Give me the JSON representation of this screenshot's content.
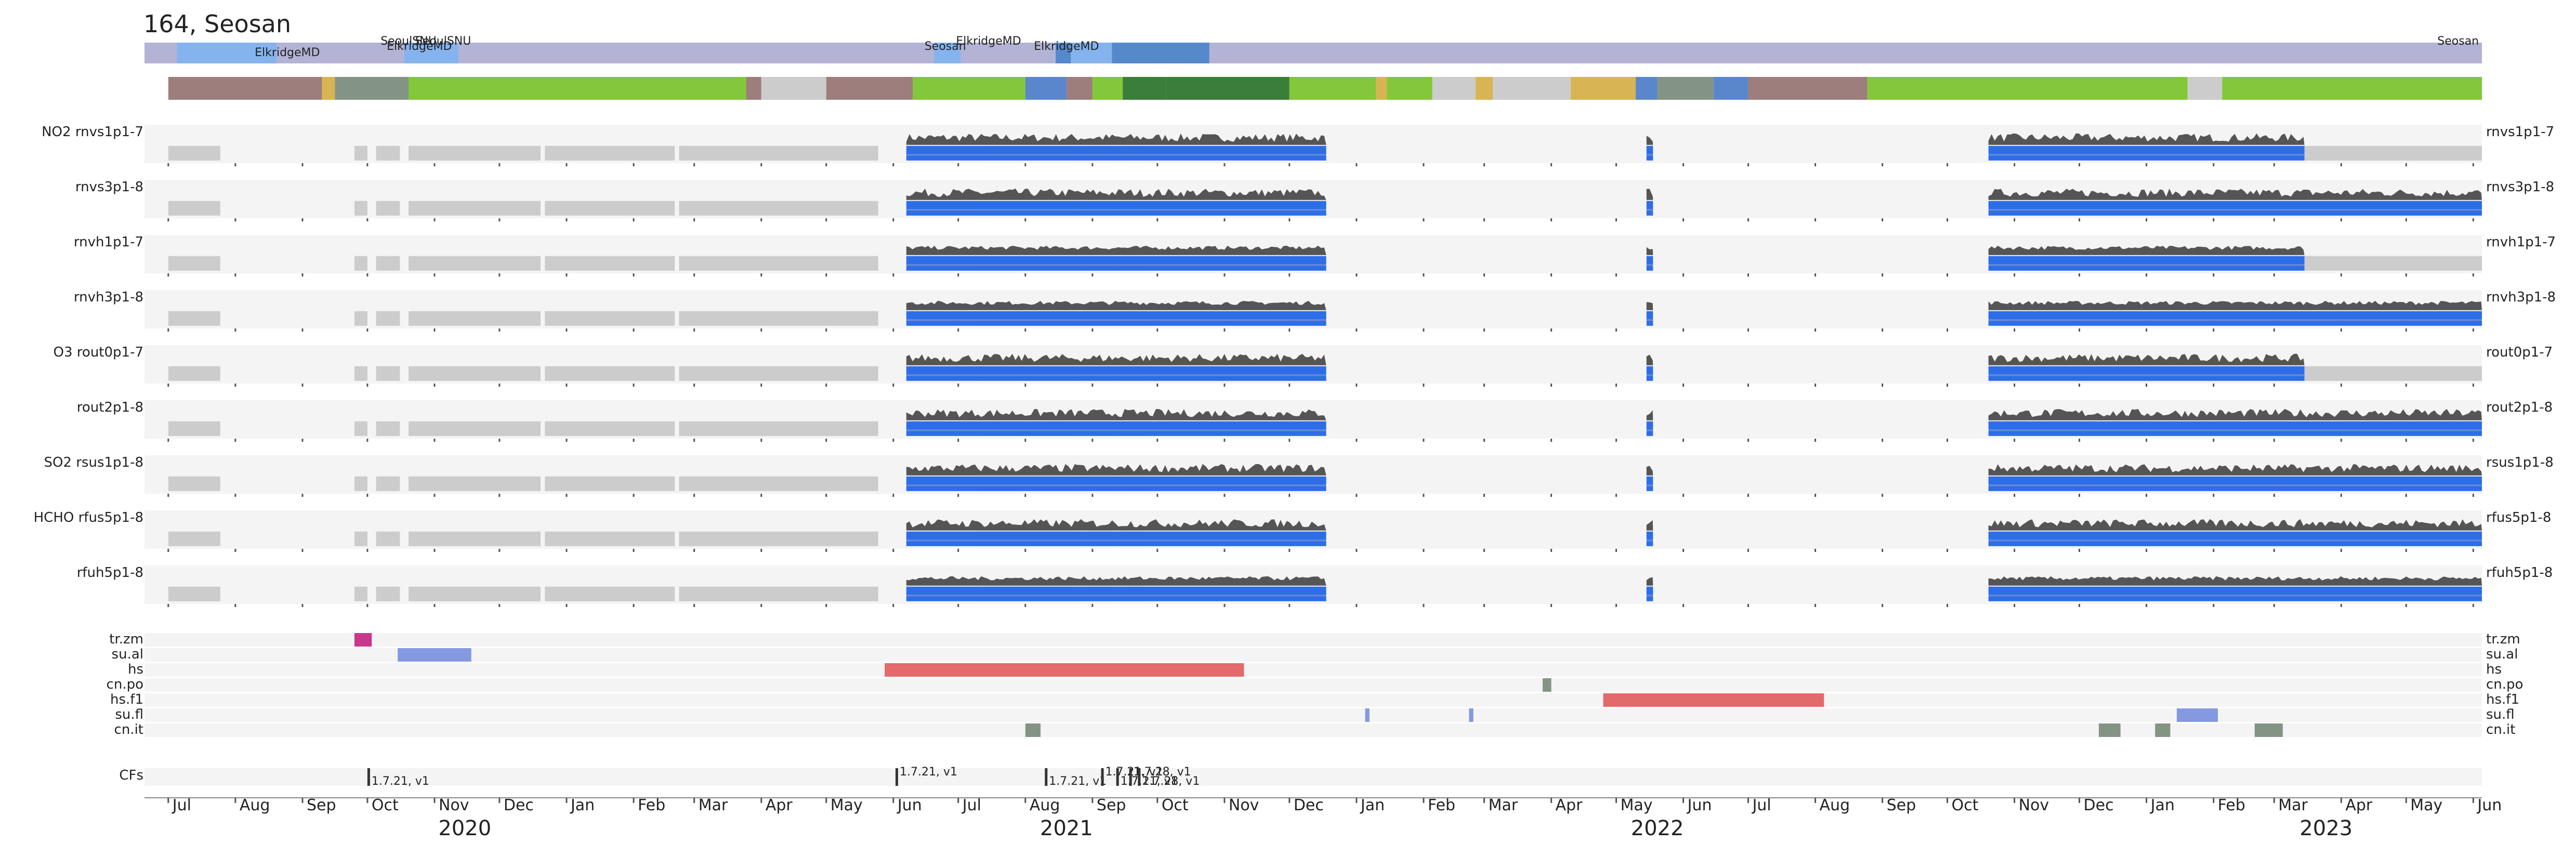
{
  "title": "164, Seosan",
  "chart_data": {
    "type": "timeline",
    "time_axis": {
      "start": "2020-06-20",
      "end": "2023-06-05",
      "months": [
        "Jul",
        "Aug",
        "Sep",
        "Oct",
        "Nov",
        "Dec",
        "Jan",
        "Feb",
        "Mar",
        "Apr",
        "May",
        "Jun",
        "Jul",
        "Aug",
        "Sep",
        "Oct",
        "Nov",
        "Dec",
        "Jan",
        "Feb",
        "Mar",
        "Apr",
        "May",
        "Jun",
        "Jul",
        "Aug",
        "Sep",
        "Oct",
        "Nov",
        "Dec",
        "Jan",
        "Feb",
        "Mar",
        "Apr",
        "May",
        "Jun"
      ],
      "years": [
        "2020",
        "2021",
        "2022",
        "2023"
      ]
    },
    "location_bar": {
      "labels": [
        {
          "text": "ElkridgeMD",
          "date": "2020-08-25",
          "row": 2
        },
        {
          "text": "SeoulSNU",
          "date": "2020-10-20",
          "row": 0
        },
        {
          "text": "SeoulSNU",
          "date": "2020-11-05",
          "row": 0
        },
        {
          "text": "ElkridgeMD",
          "date": "2020-10-25",
          "row": 1
        },
        {
          "text": "ElkridgeMD",
          "date": "2021-07-15",
          "row": 0
        },
        {
          "text": "Seosan",
          "date": "2021-06-25",
          "row": 1
        },
        {
          "text": "ElkridgeMD",
          "date": "2021-08-20",
          "row": 1
        },
        {
          "text": "Seosan",
          "date": "2023-05-25",
          "row": 0
        }
      ],
      "segments": [
        {
          "start": "2020-06-20",
          "end": "2020-07-05",
          "color": "#b3b3d6"
        },
        {
          "start": "2020-07-05",
          "end": "2020-08-20",
          "color": "#85b3ee"
        },
        {
          "start": "2020-08-20",
          "end": "2020-10-18",
          "color": "#b3b3d6"
        },
        {
          "start": "2020-10-18",
          "end": "2020-11-12",
          "color": "#85b3ee"
        },
        {
          "start": "2020-11-12",
          "end": "2021-06-20",
          "color": "#b3b3d6"
        },
        {
          "start": "2021-06-20",
          "end": "2021-07-02",
          "color": "#85b3ee"
        },
        {
          "start": "2021-07-02",
          "end": "2021-08-15",
          "color": "#b3b3d6"
        },
        {
          "start": "2021-08-15",
          "end": "2021-08-22",
          "color": "#5589cc"
        },
        {
          "start": "2021-08-22",
          "end": "2021-09-10",
          "color": "#85b3ee"
        },
        {
          "start": "2021-09-10",
          "end": "2021-10-25",
          "color": "#5589cc"
        },
        {
          "start": "2021-10-25",
          "end": "2023-06-05",
          "color": "#b3b3d6"
        }
      ]
    },
    "status_bar": {
      "segments": [
        {
          "start": "2020-06-20",
          "end": "2020-07-01",
          "color": "#ffffff"
        },
        {
          "start": "2020-07-01",
          "end": "2020-09-10",
          "color": "#9e7d7d"
        },
        {
          "start": "2020-09-10",
          "end": "2020-09-16",
          "color": "#d9b454"
        },
        {
          "start": "2020-09-16",
          "end": "2020-10-20",
          "color": "#839485"
        },
        {
          "start": "2020-10-20",
          "end": "2021-03-25",
          "color": "#82c83a"
        },
        {
          "start": "2021-03-25",
          "end": "2021-04-01",
          "color": "#9e7d7d"
        },
        {
          "start": "2021-04-01",
          "end": "2021-05-01",
          "color": "#cccccc"
        },
        {
          "start": "2021-05-01",
          "end": "2021-06-10",
          "color": "#9e7d7d"
        },
        {
          "start": "2021-06-10",
          "end": "2021-08-01",
          "color": "#82c83a"
        },
        {
          "start": "2021-08-01",
          "end": "2021-08-20",
          "color": "#5a87cc"
        },
        {
          "start": "2021-08-20",
          "end": "2021-09-01",
          "color": "#9e7d7d"
        },
        {
          "start": "2021-09-01",
          "end": "2021-09-15",
          "color": "#82c83a"
        },
        {
          "start": "2021-09-15",
          "end": "2021-10-05",
          "color": "#3a7e3a"
        },
        {
          "start": "2021-10-05",
          "end": "2021-12-01",
          "color": "#3a7e3a"
        },
        {
          "start": "2021-12-01",
          "end": "2022-01-10",
          "color": "#82c83a"
        },
        {
          "start": "2022-01-10",
          "end": "2022-01-15",
          "color": "#d9b454"
        },
        {
          "start": "2022-01-15",
          "end": "2022-02-05",
          "color": "#82c83a"
        },
        {
          "start": "2022-02-05",
          "end": "2022-02-25",
          "color": "#cccccc"
        },
        {
          "start": "2022-02-25",
          "end": "2022-03-05",
          "color": "#d9b454"
        },
        {
          "start": "2022-03-05",
          "end": "2022-04-10",
          "color": "#cccccc"
        },
        {
          "start": "2022-04-10",
          "end": "2022-05-10",
          "color": "#d9b454"
        },
        {
          "start": "2022-05-10",
          "end": "2022-05-20",
          "color": "#5a87cc"
        },
        {
          "start": "2022-05-20",
          "end": "2022-06-15",
          "color": "#839485"
        },
        {
          "start": "2022-06-15",
          "end": "2022-07-01",
          "color": "#5a87cc"
        },
        {
          "start": "2022-07-01",
          "end": "2022-08-25",
          "color": "#9e7d7d"
        },
        {
          "start": "2022-08-25",
          "end": "2023-01-20",
          "color": "#82c83a"
        },
        {
          "start": "2023-01-20",
          "end": "2023-02-05",
          "color": "#cccccc"
        },
        {
          "start": "2023-02-05",
          "end": "2023-06-05",
          "color": "#82c83a"
        }
      ]
    },
    "products": [
      {
        "left": "NO2  rnvs1p1-7",
        "right": "rnvs1p1-7",
        "style": "a",
        "data_end": "2023-03-15"
      },
      {
        "left": "rnvs3p1-8",
        "right": "rnvs3p1-8",
        "style": "a",
        "data_end": "2023-06-05"
      },
      {
        "left": "rnvh1p1-7",
        "right": "rnvh1p1-7",
        "style": "b",
        "data_end": "2023-03-15"
      },
      {
        "left": "rnvh3p1-8",
        "right": "rnvh3p1-8",
        "style": "b",
        "data_end": "2023-06-05"
      },
      {
        "left": "O3  rout0p1-7",
        "right": "rout0p1-7",
        "style": "a",
        "data_end": "2023-03-15"
      },
      {
        "left": "rout2p1-8",
        "right": "rout2p1-8",
        "style": "a",
        "data_end": "2023-06-05"
      },
      {
        "left": "SO2  rsus1p1-8",
        "right": "rsus1p1-8",
        "style": "a",
        "data_end": "2023-06-05"
      },
      {
        "left": "HCHO  rfus5p1-8",
        "right": "rfus5p1-8",
        "style": "a",
        "data_end": "2023-06-05"
      },
      {
        "left": "rfuh5p1-8",
        "right": "rfuh5p1-8",
        "style": "b",
        "data_end": "2023-06-05"
      }
    ],
    "data_periods": [
      {
        "start": "2021-06-07",
        "end": "2021-12-18"
      },
      {
        "start": "2022-05-15",
        "end": "2022-05-18"
      },
      {
        "start": "2022-10-20",
        "end": "2023-06-05"
      }
    ],
    "flag_rows": [
      {
        "name": "tr.zm",
        "events": [
          {
            "start": "2020-09-25",
            "end": "2020-10-03",
            "color": "#c8378c"
          }
        ]
      },
      {
        "name": "su.al",
        "events": [
          {
            "start": "2020-10-15",
            "end": "2020-11-18",
            "color": "#8499e0"
          }
        ]
      },
      {
        "name": "hs",
        "events": [
          {
            "start": "2021-05-28",
            "end": "2021-11-10",
            "color": "#e36a6a"
          }
        ]
      },
      {
        "name": "cn.po",
        "events": [
          {
            "start": "2022-03-28",
            "end": "2022-04-01",
            "color": "#839485"
          }
        ]
      },
      {
        "name": "hs.f1",
        "events": [
          {
            "start": "2022-04-25",
            "end": "2022-08-05",
            "color": "#e36a6a"
          }
        ]
      },
      {
        "name": "su.fl",
        "events": [
          {
            "start": "2022-02-22",
            "end": "2022-02-24",
            "color": "#8499e0"
          },
          {
            "start": "2022-01-05",
            "end": "2022-01-07",
            "color": "#8499e0"
          },
          {
            "start": "2023-01-15",
            "end": "2023-02-03",
            "color": "#8499e0"
          }
        ]
      },
      {
        "name": "cn.it",
        "events": [
          {
            "start": "2021-08-01",
            "end": "2021-08-08",
            "color": "#839485"
          },
          {
            "start": "2022-12-10",
            "end": "2022-12-20",
            "color": "#839485"
          },
          {
            "start": "2023-01-05",
            "end": "2023-01-12",
            "color": "#839485"
          },
          {
            "start": "2023-02-20",
            "end": "2023-03-05",
            "color": "#839485"
          }
        ]
      }
    ],
    "cfs": {
      "label": "CFs",
      "markers": [
        {
          "date": "2020-10-01",
          "text": "1.7.21, v1",
          "row": 1
        },
        {
          "date": "2021-06-02",
          "text": "1.7.21, v1",
          "row": 0
        },
        {
          "date": "2021-08-10",
          "text": "1.7.21, v1",
          "row": 1
        },
        {
          "date": "2021-09-05",
          "text": "1.7.21, v1",
          "row": 0
        },
        {
          "date": "2021-09-12",
          "text": "1.7.21, v1",
          "row": 1
        },
        {
          "date": "2021-09-18",
          "text": "1.7.28, v1",
          "row": 0
        },
        {
          "date": "2021-09-22",
          "text": "1.7.28, v1",
          "row": 1
        }
      ]
    }
  }
}
